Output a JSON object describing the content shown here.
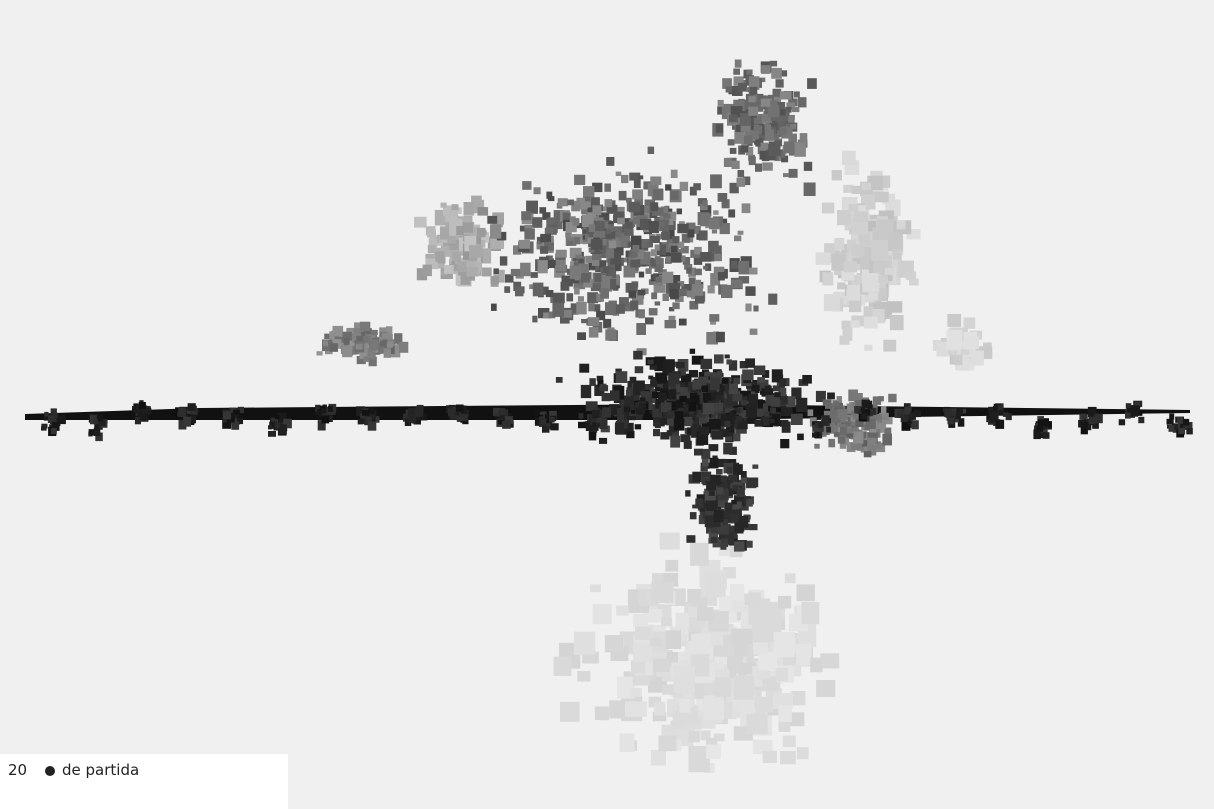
{
  "counter": 20,
  "label": "de partida"
}
